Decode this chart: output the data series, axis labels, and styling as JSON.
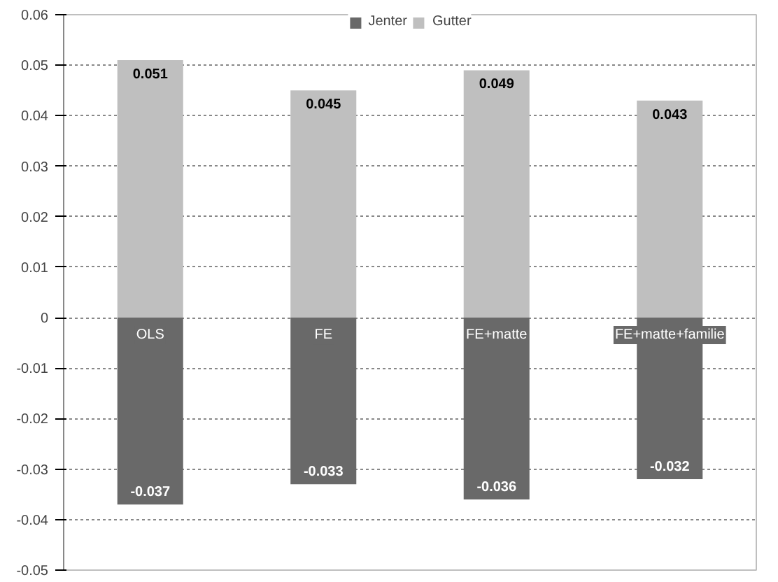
{
  "chart_data": {
    "type": "bar",
    "stacked": true,
    "categories": [
      "OLS",
      "FE",
      "FE+matte",
      "FE+matte+familie"
    ],
    "series": [
      {
        "name": "Jenter",
        "color": "#696969",
        "values": [
          -0.037,
          -0.033,
          -0.036,
          -0.032
        ]
      },
      {
        "name": "Gutter",
        "color": "#bfbfbf",
        "values": [
          0.051,
          0.045,
          0.049,
          0.043
        ]
      }
    ],
    "ylim": [
      -0.05,
      0.06
    ],
    "yticks": [
      -0.05,
      -0.04,
      -0.03,
      -0.02,
      -0.01,
      0,
      0.01,
      0.02,
      0.03,
      0.04,
      0.05,
      0.06
    ],
    "grid": "y",
    "legend": "top",
    "data_labels": true
  }
}
